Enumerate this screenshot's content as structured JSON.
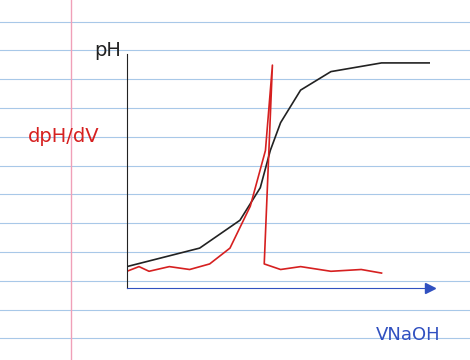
{
  "chart_data": {
    "type": "line",
    "xlabel": "VNaOH",
    "series": [
      {
        "name": "pH",
        "color": "#222222",
        "line_style": "solid",
        "x": [
          0,
          2.4,
          3.73,
          4.4,
          4.73,
          5.07,
          5.73,
          6.73,
          8.4,
          10
        ],
        "values": [
          0.96,
          1.79,
          3.04,
          4.5,
          6.17,
          7.42,
          8.88,
          9.71,
          10.1,
          10.1
        ]
      },
      {
        "name": "dpH/dV",
        "color": "#d62020",
        "line_style": "solid",
        "x": [
          0,
          0.4,
          0.73,
          1.4,
          2.07,
          2.73,
          3.4,
          4.07,
          4.57,
          4.8,
          4.53,
          5.07,
          5.73,
          6.73,
          7.73,
          8.4
        ],
        "values": [
          0.75,
          0.96,
          0.75,
          0.96,
          0.83,
          1.08,
          1.79,
          3.67,
          6.17,
          10.0,
          1.08,
          0.83,
          0.96,
          0.75,
          0.83,
          0.67
        ]
      }
    ],
    "xlim": [
      0,
      10
    ],
    "ylim": [
      0,
      10.5
    ],
    "xticks": [],
    "yticks": [],
    "tick_labels": false,
    "grid": false
  }
}
